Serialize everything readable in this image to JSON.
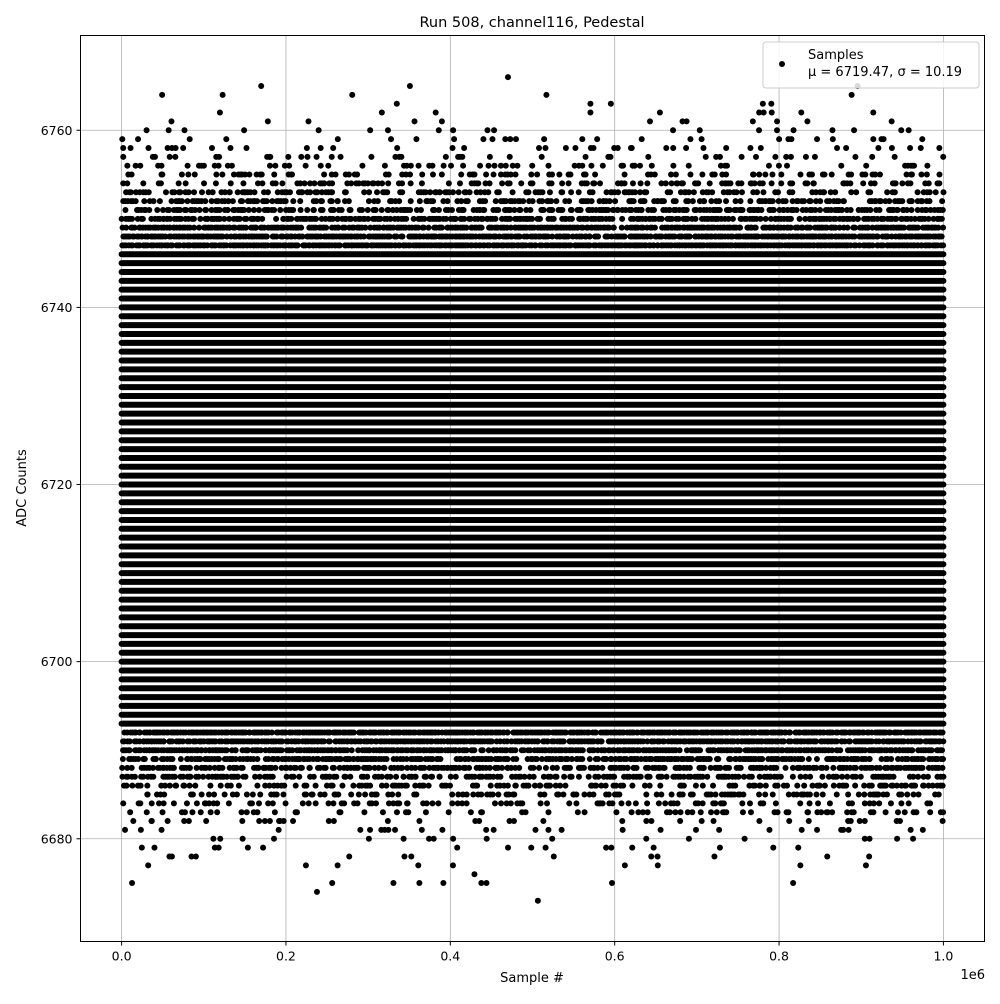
{
  "chart_data": {
    "type": "scatter",
    "title": "Run 508, channel116, Pedestal",
    "xlabel": "Sample #",
    "ylabel": "ADC Counts",
    "x_offset_label": "1e6",
    "xlim": [
      -0.05,
      1.05
    ],
    "ylim": [
      6668.4,
      6770.7
    ],
    "x_scale": 1000000,
    "xticks": [
      "0.0",
      "0.2",
      "0.4",
      "0.6",
      "0.8",
      "1.0"
    ],
    "yticks": [
      "6680",
      "6700",
      "6720",
      "6740",
      "6760"
    ],
    "grid": true,
    "legend": {
      "placement": "top-right",
      "entries": [
        {
          "name": "Samples",
          "stats": "μ = 6719.47, σ = 10.19"
        }
      ]
    },
    "series": [
      {
        "name": "Samples",
        "color": "#000000",
        "marker": "circle",
        "x_range": [
          0,
          1000000
        ],
        "mean": 6719.47,
        "sigma": 10.19,
        "y_min_observed": 6673,
        "y_max_observed": 6766,
        "values": "integer ADC counts"
      }
    ]
  }
}
